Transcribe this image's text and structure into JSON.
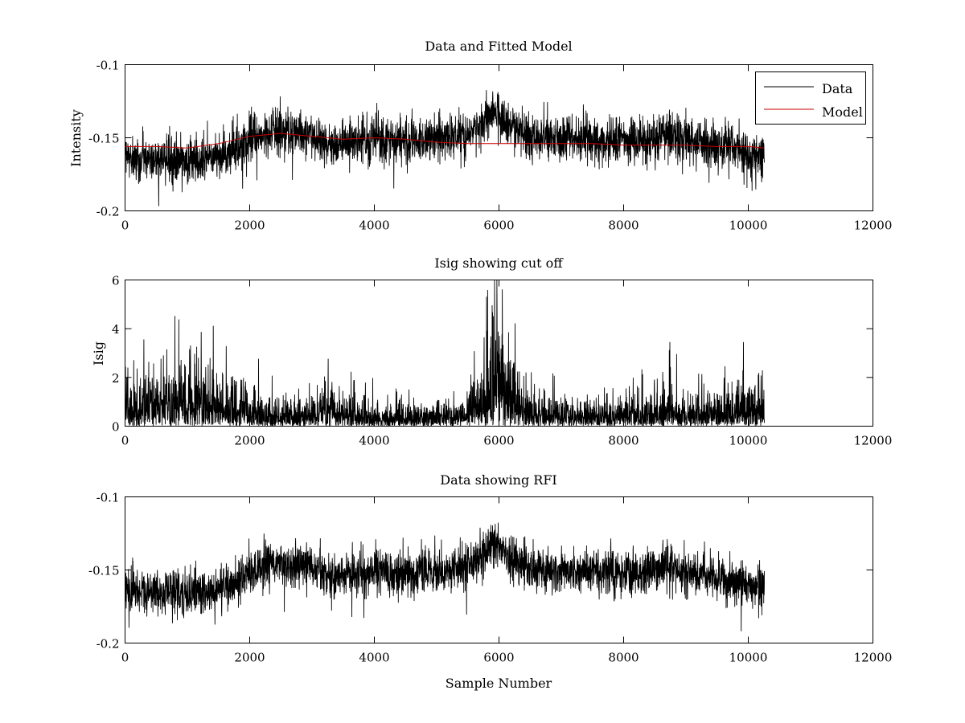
{
  "chart_data": [
    {
      "type": "line",
      "title": "Data and Fitted Model",
      "xlabel": "",
      "ylabel": "Intensity",
      "xlim": [
        0,
        12000
      ],
      "ylim": [
        -0.2,
        -0.1
      ],
      "xticks": [
        0,
        2000,
        4000,
        6000,
        8000,
        10000,
        12000
      ],
      "xtick_labels": [
        "0",
        "2000",
        "4000",
        "6000",
        "8000",
        "10000",
        "12000"
      ],
      "yticks": [
        -0.2,
        -0.15,
        -0.1
      ],
      "ytick_labels": [
        "-0.2",
        "-0.15",
        "-0.1"
      ],
      "legend": {
        "placement": "top-right",
        "entries": [
          "Data",
          "Model"
        ]
      },
      "series": [
        {
          "name": "Data",
          "color": "#000000",
          "style": "noisy",
          "x_range": [
            0,
            10260
          ],
          "noise": 0.0075,
          "x": [
            0,
            500,
            1000,
            1300,
            1700,
            2000,
            2200,
            2500,
            2800,
            3000,
            3200,
            3300,
            3600,
            4000,
            4500,
            5000,
            5500,
            5800,
            5900,
            6000,
            6200,
            6500,
            7000,
            7500,
            8000,
            8500,
            8700,
            9000,
            9500,
            9800,
            10000,
            10260
          ],
          "mean": [
            -0.163,
            -0.165,
            -0.166,
            -0.165,
            -0.16,
            -0.153,
            -0.148,
            -0.145,
            -0.146,
            -0.148,
            -0.153,
            -0.155,
            -0.153,
            -0.151,
            -0.152,
            -0.151,
            -0.148,
            -0.138,
            -0.131,
            -0.134,
            -0.142,
            -0.149,
            -0.151,
            -0.151,
            -0.152,
            -0.151,
            -0.145,
            -0.152,
            -0.156,
            -0.158,
            -0.161,
            -0.162
          ]
        },
        {
          "name": "Model",
          "color": "#cc0000",
          "style": "line",
          "x": [
            0,
            500,
            1000,
            1500,
            2000,
            2500,
            3000,
            3500,
            4000,
            4500,
            5000,
            5500,
            6000,
            6500,
            7000,
            7500,
            8000,
            8500,
            9000,
            9500,
            10000,
            10260
          ],
          "y": [
            -0.156,
            -0.156,
            -0.157,
            -0.154,
            -0.149,
            -0.147,
            -0.149,
            -0.151,
            -0.15,
            -0.151,
            -0.153,
            -0.154,
            -0.154,
            -0.154,
            -0.154,
            -0.154,
            -0.155,
            -0.155,
            -0.155,
            -0.156,
            -0.156,
            -0.157
          ]
        }
      ]
    },
    {
      "type": "line",
      "title": "Isig showing cut off",
      "xlabel": "",
      "ylabel": "Isig",
      "xlim": [
        0,
        12000
      ],
      "ylim": [
        0,
        6
      ],
      "xticks": [
        0,
        2000,
        4000,
        6000,
        8000,
        10000,
        12000
      ],
      "xtick_labels": [
        "0",
        "2000",
        "4000",
        "6000",
        "8000",
        "10000",
        "12000"
      ],
      "yticks": [
        0,
        2,
        4,
        6
      ],
      "ytick_labels": [
        "0",
        "2",
        "4",
        "6"
      ],
      "series": [
        {
          "name": "Isig",
          "color": "#000000",
          "style": "abs-noise",
          "x_range": [
            0,
            10260
          ],
          "x": [
            0,
            500,
            1000,
            1500,
            1900,
            2000,
            2500,
            3000,
            3200,
            3300,
            3500,
            4000,
            4500,
            5000,
            5500,
            5800,
            5900,
            6000,
            6300,
            6500,
            7000,
            7500,
            8000,
            8500,
            8700,
            9000,
            9500,
            9800,
            10000,
            10260
          ],
          "mean": [
            1.05,
            1.1,
            1.15,
            1.15,
            0.95,
            0.7,
            0.55,
            0.55,
            0.8,
            1.0,
            0.55,
            0.45,
            0.45,
            0.5,
            0.65,
            1.6,
            2.7,
            2.3,
            1.1,
            0.6,
            0.5,
            0.55,
            0.55,
            0.6,
            0.9,
            0.55,
            0.6,
            0.9,
            0.95,
            0.9
          ]
        }
      ]
    },
    {
      "type": "line",
      "title": "Data showing RFI",
      "xlabel": "Sample Number",
      "ylabel": "",
      "xlim": [
        0,
        12000
      ],
      "ylim": [
        -0.2,
        -0.1
      ],
      "xticks": [
        0,
        2000,
        4000,
        6000,
        8000,
        10000,
        12000
      ],
      "xtick_labels": [
        "0",
        "2000",
        "4000",
        "6000",
        "8000",
        "10000",
        "12000"
      ],
      "yticks": [
        -0.2,
        -0.15,
        -0.1
      ],
      "ytick_labels": [
        "-0.2",
        "-0.15",
        "-0.1"
      ],
      "series": [
        {
          "name": "Data",
          "color": "#000000",
          "style": "noisy",
          "x_range": [
            0,
            10260
          ],
          "noise": 0.0075,
          "x": [
            0,
            500,
            1000,
            1300,
            1700,
            2000,
            2200,
            2500,
            2800,
            3000,
            3200,
            3300,
            3600,
            4000,
            4500,
            5000,
            5500,
            5800,
            5900,
            6000,
            6200,
            6500,
            7000,
            7500,
            8000,
            8500,
            8700,
            9000,
            9500,
            9800,
            10000,
            10260
          ],
          "mean": [
            -0.163,
            -0.165,
            -0.166,
            -0.165,
            -0.16,
            -0.153,
            -0.148,
            -0.145,
            -0.146,
            -0.148,
            -0.153,
            -0.155,
            -0.153,
            -0.151,
            -0.152,
            -0.151,
            -0.148,
            -0.138,
            -0.131,
            -0.134,
            -0.142,
            -0.149,
            -0.151,
            -0.151,
            -0.152,
            -0.151,
            -0.145,
            -0.152,
            -0.156,
            -0.158,
            -0.161,
            -0.162
          ]
        }
      ]
    }
  ]
}
